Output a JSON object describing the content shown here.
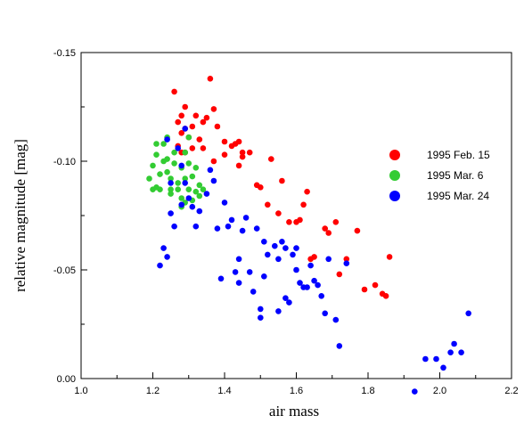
{
  "chart_data": {
    "type": "scatter",
    "xlabel": "air mass",
    "ylabel": "relative magnitude [mag]",
    "xlim": [
      1.0,
      2.2
    ],
    "ylim": [
      0.0,
      -0.15
    ],
    "y_inverted": true,
    "xticks": [
      "1.0",
      "1.2",
      "1.4",
      "1.6",
      "1.8",
      "2.0",
      "2.2"
    ],
    "yticks": [
      "-0.15",
      "-0.10",
      "-0.05",
      "0.00"
    ],
    "xtick_values": [
      1.0,
      1.2,
      1.4,
      1.6,
      1.8,
      2.0,
      2.2
    ],
    "ytick_values": [
      -0.15,
      -0.1,
      -0.05,
      0.0
    ],
    "legend_position": "right",
    "grid": false,
    "series": [
      {
        "name": "1995 Feb. 15",
        "color": "#ff0000",
        "points": [
          [
            1.26,
            -0.132
          ],
          [
            1.27,
            -0.118
          ],
          [
            1.28,
            -0.121
          ],
          [
            1.28,
            -0.113
          ],
          [
            1.29,
            -0.115
          ],
          [
            1.29,
            -0.125
          ],
          [
            1.3,
            -0.111
          ],
          [
            1.27,
            -0.107
          ],
          [
            1.28,
            -0.104
          ],
          [
            1.29,
            -0.104
          ],
          [
            1.31,
            -0.116
          ],
          [
            1.31,
            -0.106
          ],
          [
            1.32,
            -0.121
          ],
          [
            1.33,
            -0.11
          ],
          [
            1.34,
            -0.118
          ],
          [
            1.34,
            -0.106
          ],
          [
            1.35,
            -0.12
          ],
          [
            1.36,
            -0.138
          ],
          [
            1.37,
            -0.1
          ],
          [
            1.37,
            -0.124
          ],
          [
            1.38,
            -0.116
          ],
          [
            1.4,
            -0.109
          ],
          [
            1.4,
            -0.103
          ],
          [
            1.42,
            -0.107
          ],
          [
            1.43,
            -0.108
          ],
          [
            1.44,
            -0.109
          ],
          [
            1.44,
            -0.098
          ],
          [
            1.45,
            -0.102
          ],
          [
            1.45,
            -0.104
          ],
          [
            1.47,
            -0.104
          ],
          [
            1.49,
            -0.089
          ],
          [
            1.5,
            -0.088
          ],
          [
            1.52,
            -0.08
          ],
          [
            1.53,
            -0.101
          ],
          [
            1.55,
            -0.076
          ],
          [
            1.56,
            -0.091
          ],
          [
            1.58,
            -0.072
          ],
          [
            1.6,
            -0.072
          ],
          [
            1.61,
            -0.073
          ],
          [
            1.62,
            -0.08
          ],
          [
            1.63,
            -0.086
          ],
          [
            1.64,
            -0.055
          ],
          [
            1.65,
            -0.056
          ],
          [
            1.68,
            -0.069
          ],
          [
            1.69,
            -0.067
          ],
          [
            1.71,
            -0.072
          ],
          [
            1.72,
            -0.048
          ],
          [
            1.74,
            -0.055
          ],
          [
            1.77,
            -0.068
          ],
          [
            1.79,
            -0.041
          ],
          [
            1.82,
            -0.043
          ],
          [
            1.84,
            -0.039
          ],
          [
            1.85,
            -0.038
          ],
          [
            1.86,
            -0.056
          ]
        ]
      },
      {
        "name": "1995 Mar. 6",
        "color": "#33cc33",
        "points": [
          [
            1.19,
            -0.092
          ],
          [
            1.2,
            -0.087
          ],
          [
            1.2,
            -0.098
          ],
          [
            1.21,
            -0.103
          ],
          [
            1.21,
            -0.108
          ],
          [
            1.21,
            -0.088
          ],
          [
            1.22,
            -0.094
          ],
          [
            1.22,
            -0.087
          ],
          [
            1.23,
            -0.1
          ],
          [
            1.23,
            -0.108
          ],
          [
            1.24,
            -0.111
          ],
          [
            1.24,
            -0.101
          ],
          [
            1.24,
            -0.095
          ],
          [
            1.25,
            -0.092
          ],
          [
            1.25,
            -0.085
          ],
          [
            1.26,
            -0.099
          ],
          [
            1.26,
            -0.104
          ],
          [
            1.27,
            -0.09
          ],
          [
            1.27,
            -0.087
          ],
          [
            1.28,
            -0.097
          ],
          [
            1.28,
            -0.083
          ],
          [
            1.28,
            -0.079
          ],
          [
            1.29,
            -0.092
          ],
          [
            1.29,
            -0.081
          ],
          [
            1.3,
            -0.099
          ],
          [
            1.3,
            -0.087
          ],
          [
            1.31,
            -0.082
          ],
          [
            1.31,
            -0.093
          ],
          [
            1.32,
            -0.097
          ],
          [
            1.32,
            -0.086
          ],
          [
            1.33,
            -0.089
          ],
          [
            1.33,
            -0.084
          ],
          [
            1.34,
            -0.087
          ],
          [
            1.29,
            -0.104
          ],
          [
            1.3,
            -0.111
          ],
          [
            1.25,
            -0.087
          ]
        ]
      },
      {
        "name": "1995 Mar. 24",
        "color": "#0000ff",
        "points": [
          [
            1.22,
            -0.052
          ],
          [
            1.23,
            -0.06
          ],
          [
            1.24,
            -0.056
          ],
          [
            1.24,
            -0.11
          ],
          [
            1.25,
            -0.076
          ],
          [
            1.25,
            -0.09
          ],
          [
            1.26,
            -0.07
          ],
          [
            1.27,
            -0.106
          ],
          [
            1.28,
            -0.08
          ],
          [
            1.28,
            -0.098
          ],
          [
            1.29,
            -0.09
          ],
          [
            1.29,
            -0.115
          ],
          [
            1.3,
            -0.083
          ],
          [
            1.31,
            -0.079
          ],
          [
            1.32,
            -0.07
          ],
          [
            1.33,
            -0.077
          ],
          [
            1.35,
            -0.085
          ],
          [
            1.36,
            -0.096
          ],
          [
            1.37,
            -0.091
          ],
          [
            1.38,
            -0.069
          ],
          [
            1.39,
            -0.046
          ],
          [
            1.4,
            -0.081
          ],
          [
            1.41,
            -0.07
          ],
          [
            1.42,
            -0.073
          ],
          [
            1.43,
            -0.049
          ],
          [
            1.44,
            -0.055
          ],
          [
            1.44,
            -0.044
          ],
          [
            1.45,
            -0.068
          ],
          [
            1.46,
            -0.074
          ],
          [
            1.47,
            -0.049
          ],
          [
            1.48,
            -0.04
          ],
          [
            1.49,
            -0.069
          ],
          [
            1.5,
            -0.032
          ],
          [
            1.5,
            -0.028
          ],
          [
            1.51,
            -0.047
          ],
          [
            1.51,
            -0.063
          ],
          [
            1.52,
            -0.057
          ],
          [
            1.54,
            -0.061
          ],
          [
            1.55,
            -0.031
          ],
          [
            1.55,
            -0.055
          ],
          [
            1.56,
            -0.063
          ],
          [
            1.57,
            -0.037
          ],
          [
            1.57,
            -0.06
          ],
          [
            1.58,
            -0.035
          ],
          [
            1.59,
            -0.057
          ],
          [
            1.6,
            -0.06
          ],
          [
            1.6,
            -0.05
          ],
          [
            1.61,
            -0.044
          ],
          [
            1.62,
            -0.042
          ],
          [
            1.63,
            -0.042
          ],
          [
            1.64,
            -0.052
          ],
          [
            1.65,
            -0.045
          ],
          [
            1.66,
            -0.043
          ],
          [
            1.67,
            -0.038
          ],
          [
            1.68,
            -0.03
          ],
          [
            1.69,
            -0.055
          ],
          [
            1.71,
            -0.027
          ],
          [
            1.72,
            -0.015
          ],
          [
            1.74,
            -0.053
          ],
          [
            1.93,
            0.006
          ],
          [
            1.96,
            -0.009
          ],
          [
            1.99,
            -0.009
          ],
          [
            2.01,
            -0.005
          ],
          [
            2.03,
            -0.012
          ],
          [
            2.04,
            -0.016
          ],
          [
            2.06,
            -0.012
          ],
          [
            2.08,
            -0.03
          ]
        ]
      }
    ]
  }
}
